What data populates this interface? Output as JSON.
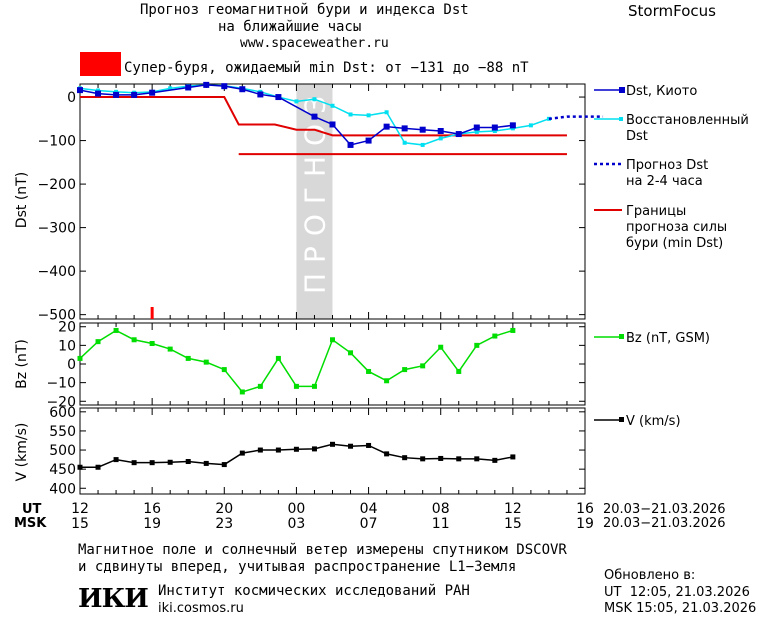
{
  "header": {
    "title_line1": "Прогноз геомагнитной бури и индекса Dst",
    "title_line2": "на ближайшие часы",
    "url": "www.spaceweather.ru",
    "brand": "StormFocus"
  },
  "alert": {
    "text": "Супер-буря, ожидаемый min Dst: от −131 до −88 nT",
    "color": "#ff0000"
  },
  "forecast_band_label": "ПРОГНОЗ",
  "colors": {
    "dst": "#0000cc",
    "restored": "#00e0f0",
    "forecast": "#0000cc",
    "bounds": "#e00000",
    "bz": "#00dd00",
    "v": "#000000",
    "band": "#d8d8d8"
  },
  "chart_data": [
    {
      "type": "line",
      "ylabel": "Dst (nT)",
      "ylim": [
        -510,
        30
      ],
      "yticks": [
        0,
        -100,
        -200,
        -300,
        -400,
        -500
      ],
      "ytick_labels": [
        "0",
        "−100",
        "−200",
        "−300",
        "−400",
        "−500"
      ],
      "forecast_band_hours": [
        12,
        14
      ],
      "legend": {
        "dst": "Dst, Киото",
        "restored_line1": "Восстановленный",
        "restored_line2": "Dst",
        "forecast_line1": "Прогноз Dst",
        "forecast_line2": "на 2-4 часа",
        "bounds_line1": "Границы",
        "bounds_line2": "прогноза силы",
        "bounds_line3": "бури (min Dst)"
      },
      "series": [
        {
          "name": "Dst, Киото",
          "x": [
            0,
            1,
            2,
            3,
            4,
            6,
            7,
            8,
            9,
            10,
            11,
            13,
            14,
            15,
            16,
            17,
            18,
            19,
            20,
            21,
            22,
            23,
            24
          ],
          "values": [
            16,
            8,
            5,
            5,
            10,
            22,
            28,
            25,
            18,
            6,
            0,
            -45,
            -63,
            -110,
            -100,
            -68,
            -72,
            -75,
            -78,
            -85,
            -70,
            -70,
            -65
          ]
        },
        {
          "name": "Восстановленный Dst",
          "x": [
            0,
            1,
            2,
            3,
            4,
            5,
            6,
            7,
            8,
            9,
            10,
            11,
            12,
            13,
            14,
            15,
            16,
            17,
            18,
            19,
            20,
            21,
            22,
            23,
            24,
            25,
            26
          ],
          "values": [
            20,
            15,
            12,
            10,
            12,
            20,
            25,
            28,
            26,
            20,
            12,
            0,
            -10,
            -5,
            -20,
            -40,
            -42,
            -35,
            -105,
            -110,
            -95,
            -85,
            -80,
            -78,
            -72,
            -65,
            -50
          ]
        },
        {
          "name": "Прогноз Dst на 2-4 часа",
          "x": [
            26,
            27,
            28,
            29
          ],
          "values": [
            -50,
            -45,
            -45,
            -45
          ]
        }
      ],
      "bounds": [
        {
          "x": [
            0,
            8,
            8.8,
            10.8,
            12,
            13,
            14,
            27
          ],
          "values": [
            0,
            0,
            -63,
            -63,
            -75,
            -75,
            -88,
            -88
          ]
        },
        {
          "x": [
            8.8,
            27
          ],
          "values": [
            -131,
            -131
          ]
        }
      ],
      "event_marker_hour": 4
    },
    {
      "type": "line",
      "ylabel": "Bz (nT)",
      "ylim": [
        -22,
        22
      ],
      "yticks": [
        20,
        10,
        0,
        -10,
        -20
      ],
      "ytick_labels": [
        "20",
        "10",
        "0",
        "−10",
        "−20"
      ],
      "legend": "Bz (nT, GSM)",
      "series": [
        {
          "name": "Bz (nT, GSM)",
          "x": [
            0,
            1,
            2,
            3,
            4,
            5,
            6,
            7,
            8,
            9,
            10,
            11,
            12,
            13,
            14,
            15,
            16,
            17,
            18,
            19,
            20,
            21,
            22,
            23,
            24,
            25,
            26
          ],
          "values": [
            3,
            12,
            18,
            13,
            11,
            8,
            3,
            1,
            -3,
            -15,
            -12,
            3,
            -12,
            -12,
            13,
            6,
            -4,
            -9,
            -3,
            -1,
            9,
            -4,
            10,
            15,
            18,
            null,
            null
          ]
        }
      ]
    },
    {
      "type": "line",
      "ylabel": "V (km/s)",
      "ylim": [
        385,
        610
      ],
      "yticks": [
        600,
        550,
        500,
        450,
        400
      ],
      "ytick_labels": [
        "600",
        "550",
        "500",
        "450",
        "400"
      ],
      "legend": "V (km/s)",
      "series": [
        {
          "name": "V (km/s)",
          "x": [
            0,
            1,
            2,
            3,
            4,
            5,
            6,
            7,
            8,
            9,
            10,
            11,
            12,
            13,
            14,
            15,
            16,
            17,
            18,
            19,
            20,
            21,
            22,
            23,
            24
          ],
          "values": [
            455,
            455,
            475,
            467,
            467,
            468,
            470,
            465,
            462,
            492,
            500,
            500,
            502,
            503,
            515,
            510,
            512,
            490,
            480,
            477,
            478,
            477,
            477,
            473,
            482
          ]
        }
      ]
    }
  ],
  "xaxis": {
    "ut_label": "UT",
    "msk_label": "MSK",
    "ut_ticks": [
      "12",
      "16",
      "20",
      "00",
      "04",
      "08",
      "12",
      "16"
    ],
    "msk_ticks": [
      "15",
      "19",
      "23",
      "03",
      "07",
      "11",
      "15",
      "19"
    ],
    "tick_hours": [
      0,
      4,
      8,
      12,
      16,
      20,
      24,
      28
    ],
    "ut_date_range": "20.03−21.03.2026",
    "msk_date_range": "20.03−21.03.2026"
  },
  "footer": {
    "note_line1": "Магнитное поле и солнечный ветер измерены спутником DSCOVR",
    "note_line2": "и сдвинуты вперед, учитывая распространение L1−Земля",
    "logo_text": "ИКИ",
    "institute": "Институт космических исследований РАН",
    "site": "iki.cosmos.ru",
    "updated_label": "Обновлено в:",
    "updated_ut": "UT  12:05, 21.03.2026",
    "updated_msk": "MSK 15:05, 21.03.2026"
  }
}
